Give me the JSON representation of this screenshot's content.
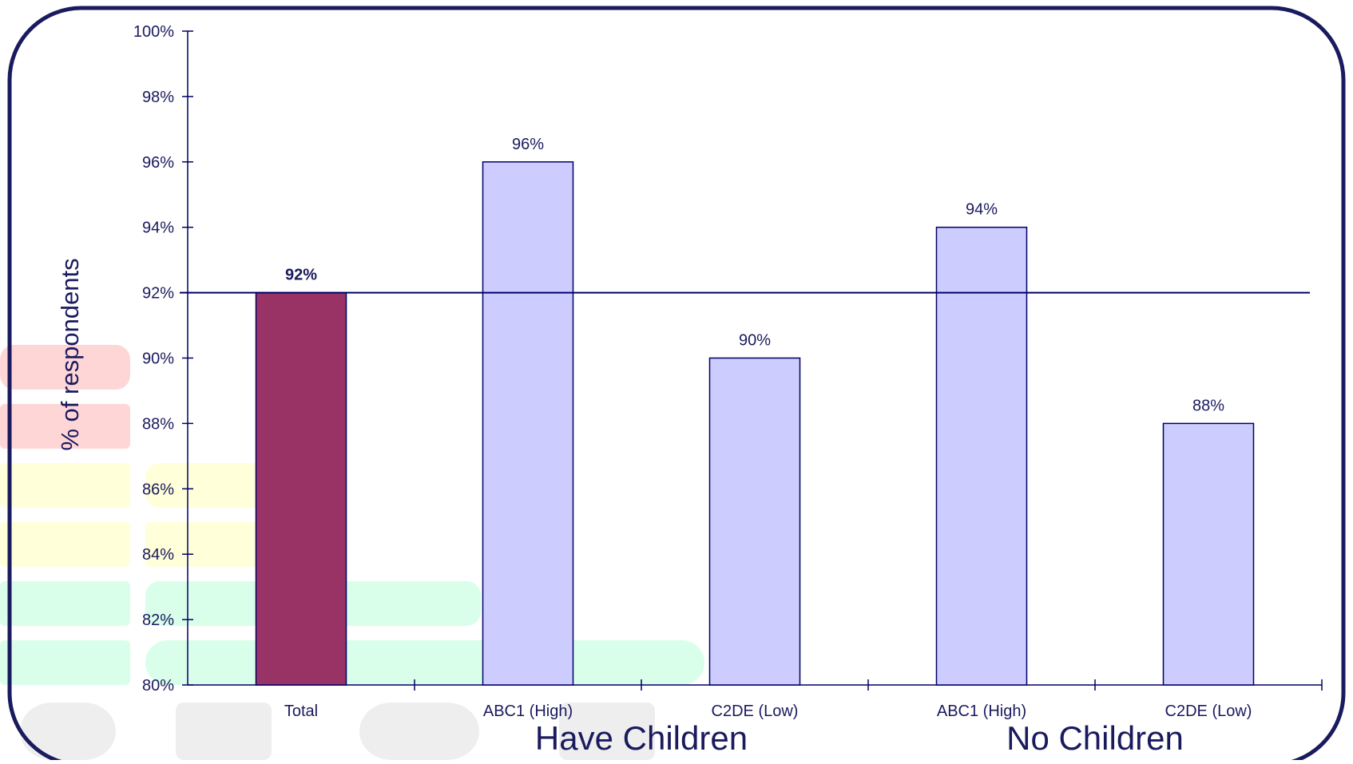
{
  "chart_data": {
    "type": "bar",
    "categories": [
      "Total",
      "ABC1 (High)",
      "C2DE (Low)",
      "ABC1 (High)",
      "C2DE (Low)"
    ],
    "values": [
      92,
      96,
      90,
      94,
      88
    ],
    "value_labels": [
      "92%",
      "96%",
      "90%",
      "94%",
      "88%"
    ],
    "groups": [
      {
        "label": "Have Children",
        "categories": [
          1,
          2
        ]
      },
      {
        "label": "No Children",
        "categories": [
          3,
          4
        ]
      }
    ],
    "title": "",
    "xlabel": "",
    "ylabel": "% of respondents",
    "ylim": [
      80,
      100
    ],
    "yticks": [
      80,
      82,
      84,
      86,
      88,
      90,
      92,
      94,
      96,
      98,
      100
    ],
    "ytick_suffix": "%",
    "reference_line": 92,
    "grid": false,
    "legend": "none",
    "colors": {
      "highlight_bar": "#993366",
      "bar": "#ccccff",
      "bar_stroke": "#000066",
      "axis": "#000066",
      "reference_line": "#000066",
      "frame": "#1a1a5e",
      "text": "#1a1a5e"
    }
  }
}
